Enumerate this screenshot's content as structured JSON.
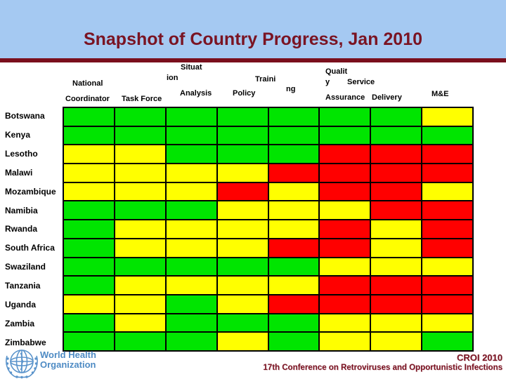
{
  "slide": {
    "title": "Snapshot of Country Progress, Jan 2010",
    "band_color": "#A5C9F2",
    "title_color": "#7A1423",
    "rule_color": "#7A0F1D"
  },
  "header": {
    "national": "National",
    "coordinator": "Coordinator",
    "task_force": "Task Force",
    "situat": "Situat",
    "ion": "ion",
    "analysis": "Analysis",
    "policy": "Policy",
    "traini": "Traini",
    "ng": "ng",
    "qualit": "Qualit",
    "y": "y",
    "service": "Service",
    "assurance": "Assurance",
    "delivery": "Delivery",
    "me": "M&E"
  },
  "status_colors": {
    "G": "#00E500",
    "Y": "#FFFF00",
    "R": "#FF0000"
  },
  "chart_data": {
    "type": "heatmap",
    "title": "Snapshot of Country Progress, Jan 2010",
    "columns": [
      "National Coordinator",
      "Task Force",
      "Situation Analysis",
      "Policy",
      "Training",
      "Quality Assurance",
      "Service Delivery",
      "M&E"
    ],
    "rows": [
      "Botswana",
      "Kenya",
      "Lesotho",
      "Malawi",
      "Mozambique",
      "Namibia",
      "Rwanda",
      "South Africa",
      "Swaziland",
      "Tanzania",
      "Uganda",
      "Zambia",
      "Zimbabwe"
    ],
    "values": [
      [
        "G",
        "G",
        "G",
        "G",
        "G",
        "G",
        "G",
        "Y"
      ],
      [
        "G",
        "G",
        "G",
        "G",
        "G",
        "G",
        "G",
        "G"
      ],
      [
        "Y",
        "Y",
        "G",
        "G",
        "G",
        "R",
        "R",
        "R"
      ],
      [
        "Y",
        "Y",
        "Y",
        "Y",
        "R",
        "R",
        "R",
        "R"
      ],
      [
        "Y",
        "Y",
        "Y",
        "R",
        "Y",
        "R",
        "R",
        "Y"
      ],
      [
        "G",
        "G",
        "G",
        "Y",
        "Y",
        "Y",
        "R",
        "R"
      ],
      [
        "G",
        "Y",
        "Y",
        "Y",
        "Y",
        "R",
        "Y",
        "R"
      ],
      [
        "G",
        "Y",
        "Y",
        "Y",
        "R",
        "R",
        "Y",
        "R"
      ],
      [
        "G",
        "G",
        "G",
        "G",
        "G",
        "Y",
        "Y",
        "Y"
      ],
      [
        "G",
        "Y",
        "Y",
        "Y",
        "Y",
        "R",
        "R",
        "R"
      ],
      [
        "Y",
        "Y",
        "G",
        "Y",
        "R",
        "R",
        "R",
        "R"
      ],
      [
        "G",
        "Y",
        "G",
        "G",
        "G",
        "Y",
        "Y",
        "Y"
      ],
      [
        "G",
        "G",
        "G",
        "Y",
        "G",
        "Y",
        "Y",
        "G"
      ]
    ],
    "color_scale": {
      "G": "#00E500",
      "Y": "#FFFF00",
      "R": "#FF0000"
    },
    "grid_lines": "black",
    "legend_position": "none"
  },
  "footer": {
    "who_line1": "World Health",
    "who_line2": "Organization",
    "event": "CROI 2010",
    "conference": "17th Conference on Retroviruses and Opportunistic Infections"
  }
}
